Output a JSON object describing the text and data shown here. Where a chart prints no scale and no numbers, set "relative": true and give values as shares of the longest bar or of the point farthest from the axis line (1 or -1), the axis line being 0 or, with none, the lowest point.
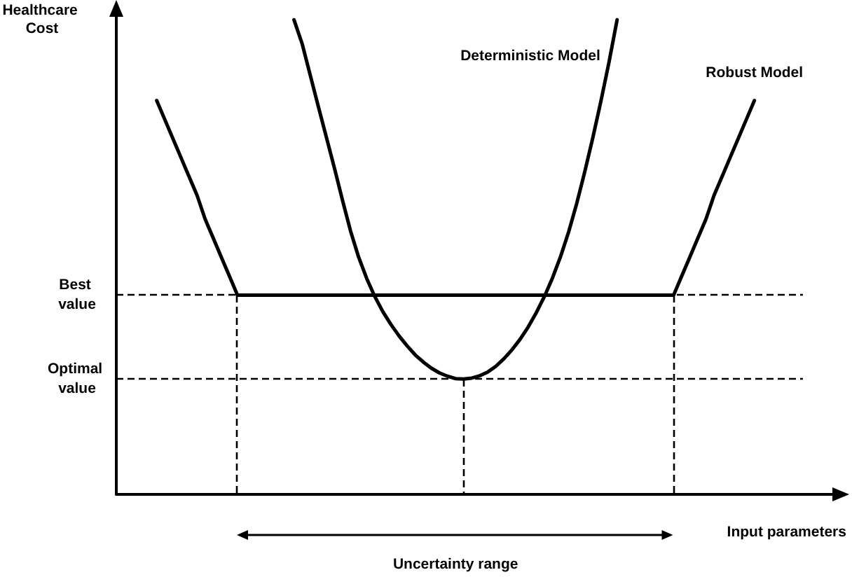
{
  "chart_data": {
    "type": "line",
    "relative": true,
    "xlabel": "Input parameters",
    "ylabel": "Healthcare Cost",
    "categories": [
      null,
      null,
      null,
      null,
      null,
      null,
      null,
      null,
      null,
      null,
      null,
      null,
      null,
      null,
      null,
      null,
      null,
      null,
      null,
      null,
      null,
      null,
      null,
      null,
      null,
      null,
      null,
      null,
      null,
      null,
      null,
      null,
      null,
      null,
      null,
      null,
      null,
      null,
      null,
      null,
      null,
      null,
      null,
      null,
      null,
      null,
      null,
      null,
      null,
      null,
      null,
      null,
      null,
      null,
      null,
      null,
      null,
      null,
      null,
      null,
      null,
      null,
      null,
      null,
      null,
      null,
      null,
      null,
      null,
      null,
      null,
      null,
      null,
      null,
      null,
      null,
      null,
      null,
      null,
      null,
      null,
      null,
      null,
      null,
      null,
      null,
      null,
      null,
      null,
      null
    ],
    "series": [
      {
        "name": "Deterministic Model",
        "color": "#000000",
        "values": [
          null,
          null,
          null,
          null,
          null,
          null,
          null,
          null,
          null,
          null,
          null,
          null,
          null,
          null,
          null,
          null,
          null,
          null,
          null,
          null,
          null,
          null,
          1.0,
          0.95,
          0.884,
          0.818,
          0.753,
          0.688,
          0.62,
          0.555,
          0.5,
          0.455,
          0.417,
          0.385,
          0.358,
          0.334,
          0.313,
          0.294,
          0.279,
          0.266,
          0.256,
          0.249,
          0.244,
          0.243,
          0.245,
          0.25,
          0.258,
          0.27,
          0.286,
          0.305,
          0.327,
          0.353,
          0.383,
          0.417,
          0.456,
          0.501,
          0.553,
          0.613,
          0.68,
          0.752,
          0.829,
          0.911,
          1.0,
          null,
          null,
          null,
          null,
          null,
          null,
          null,
          null,
          null,
          null,
          null,
          null,
          null,
          null,
          null,
          null,
          null,
          null,
          null,
          null,
          null,
          null,
          null,
          null,
          null,
          null,
          null
        ]
      },
      {
        "name": "Robust Model",
        "color": "#000000",
        "values": [
          null,
          null,
          null,
          null,
          null,
          0.83,
          0.79,
          0.75,
          0.71,
          0.67,
          0.63,
          0.58,
          0.54,
          0.5,
          0.46,
          0.42,
          0.42,
          0.42,
          0.42,
          0.42,
          0.42,
          0.42,
          0.42,
          0.42,
          0.42,
          0.42,
          0.42,
          0.42,
          0.42,
          0.42,
          0.42,
          0.42,
          0.42,
          0.42,
          0.42,
          0.42,
          0.42,
          0.42,
          0.42,
          0.42,
          0.42,
          0.42,
          0.42,
          0.42,
          0.42,
          0.42,
          0.42,
          0.42,
          0.42,
          0.42,
          0.42,
          0.42,
          0.42,
          0.42,
          0.42,
          0.42,
          0.42,
          0.42,
          0.42,
          0.42,
          0.42,
          0.42,
          0.42,
          0.42,
          0.42,
          0.42,
          0.42,
          0.42,
          0.42,
          0.42,
          0.46,
          0.5,
          0.54,
          0.58,
          0.63,
          0.67,
          0.71,
          0.75,
          0.79,
          0.83,
          null,
          null,
          null,
          null,
          null,
          null,
          null,
          null,
          null,
          null
        ]
      }
    ],
    "ref_lines": [
      {
        "axis": "y",
        "value": 0.42,
        "label": "Best value",
        "line_style": "dashed"
      },
      {
        "axis": "y",
        "value": 0.243,
        "label": "Optimal value",
        "line_style": "dashed"
      }
    ],
    "annotations": [
      "Uncertainty range"
    ],
    "legend": false,
    "grid": false,
    "marker": "none",
    "line_style": "solid"
  }
}
